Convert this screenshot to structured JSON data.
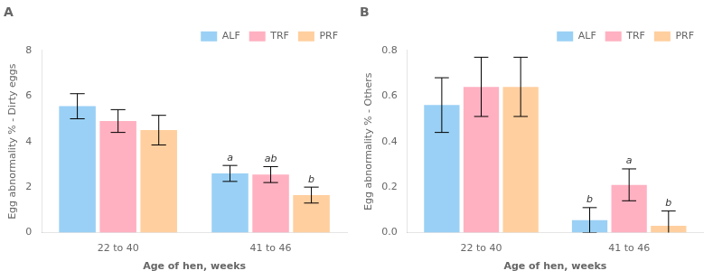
{
  "chart_data": [
    {
      "type": "bar",
      "title": "A",
      "x_label": "Age of hen, weeks",
      "y_label": "Egg abnormality % - Dirty eggs",
      "categories": [
        "22 to 40",
        "41 to 46"
      ],
      "series": [
        {
          "name": "ALF",
          "values": [
            5.55,
            2.6
          ],
          "errors": [
            0.55,
            0.35
          ],
          "labels": [
            null,
            "a"
          ]
        },
        {
          "name": "TRF",
          "values": [
            4.9,
            2.55
          ],
          "errors": [
            0.5,
            0.35
          ],
          "labels": [
            null,
            "ab"
          ]
        },
        {
          "name": "PRF",
          "values": [
            4.5,
            1.65
          ],
          "errors": [
            0.65,
            0.35
          ],
          "labels": [
            null,
            "b"
          ]
        }
      ],
      "ylim": [
        0,
        8
      ],
      "yticks": [
        0,
        2,
        4,
        6,
        8
      ],
      "grid": false,
      "legend": "upper right"
    },
    {
      "type": "bar",
      "title": "B",
      "x_label": "Age of hen, weeks",
      "y_label": "Egg abnormality % - Others",
      "categories": [
        "22 to 40",
        "41 to 46"
      ],
      "series": [
        {
          "name": "ALF",
          "values": [
            0.56,
            0.055
          ],
          "errors": [
            0.12,
            0.055
          ],
          "labels": [
            null,
            "b"
          ]
        },
        {
          "name": "TRF",
          "values": [
            0.64,
            0.21
          ],
          "errors": [
            0.13,
            0.07
          ],
          "labels": [
            null,
            "a"
          ]
        },
        {
          "name": "PRF",
          "values": [
            0.64,
            0.03
          ],
          "errors": [
            0.13,
            0.065
          ],
          "labels": [
            null,
            "b"
          ]
        }
      ],
      "ylim": [
        0,
        0.8
      ],
      "yticks": [
        {
          "value": 0,
          "label": "0.0"
        },
        0.2,
        0.4,
        0.6,
        0.8
      ],
      "grid": false,
      "legend": "upper right"
    }
  ]
}
